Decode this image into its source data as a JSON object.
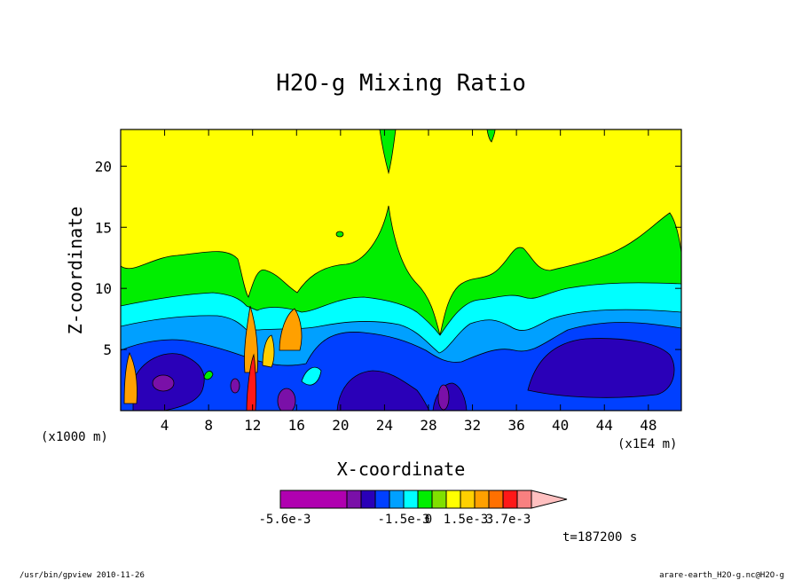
{
  "chart_data": {
    "type": "contour",
    "title": "H2O-g Mixing Ratio",
    "xlabel": "X-coordinate",
    "ylabel": "Z-coordinate",
    "x_unit": "(x1E4 m)",
    "y_unit": "(x1000 m)",
    "xlim": [
      0,
      51
    ],
    "ylim": [
      0,
      23
    ],
    "x_ticks": [
      4,
      8,
      12,
      16,
      20,
      24,
      28,
      32,
      36,
      40,
      44,
      48
    ],
    "y_ticks": [
      5,
      10,
      15,
      20
    ],
    "colorbar": {
      "colors": [
        "#b000b0",
        "#7a10a8",
        "#2a00b8",
        "#0040ff",
        "#00a0ff",
        "#00ffff",
        "#00ee00",
        "#80e000",
        "#ffff00",
        "#ffd000",
        "#ffa000",
        "#ff7000",
        "#ff1818",
        "#f88080",
        "#ffc0c0"
      ],
      "tick_labels": [
        {
          "label": "-5.6e-3",
          "value": -0.0056
        },
        {
          "label": "-1.5e-3",
          "value": -0.0015
        },
        {
          "label": "0",
          "value": 0
        },
        {
          "label": "1.5e-3",
          "value": 0.0015
        },
        {
          "label": "3.7e-3",
          "value": 0.0037
        }
      ]
    },
    "time_label": "t=187200 s"
  },
  "footer": {
    "left": "/usr/bin/gpview   2010-11-26",
    "right": "arare-earth_H2O-g.nc@H2O-g"
  },
  "colors": {
    "yellow": "#ffff00",
    "green": "#00ee00",
    "cyan": "#00ffff",
    "light_blue": "#00a0ff",
    "blue": "#0040ff",
    "dark_blue": "#2a00b8",
    "purple": "#7a10a8",
    "magenta": "#b000b0",
    "orange": "#ffa000"
  }
}
